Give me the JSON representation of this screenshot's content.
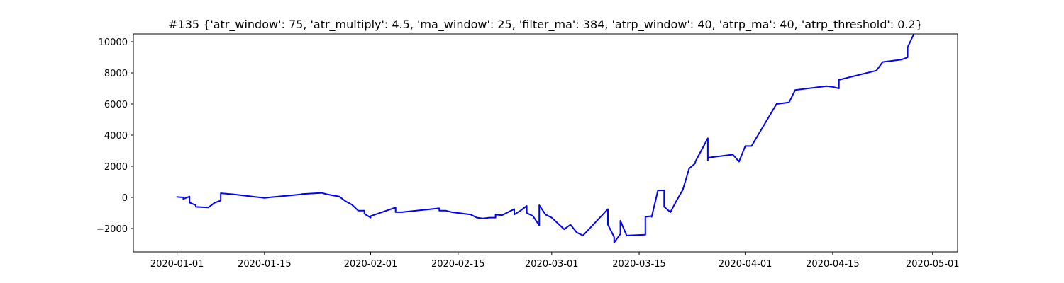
{
  "chart_data": {
    "type": "line",
    "title": "#135 {'atr_window': 75, 'atr_multiply': 4.5, 'ma_window': 25, 'filter_ma': 384, 'atrp_window': 40, 'atrp_ma': 40, 'atrp_threshold': 0.2}",
    "xlabel": "",
    "ylabel": "",
    "xlim": [
      "2019-12-25",
      "2020-05-05"
    ],
    "ylim": [
      -3500,
      10500
    ],
    "grid": false,
    "line_color": "#0000ff",
    "x_ticks": [
      "2020-01-01",
      "2020-01-15",
      "2020-02-01",
      "2020-02-15",
      "2020-03-01",
      "2020-03-15",
      "2020-04-01",
      "2020-04-15",
      "2020-05-01"
    ],
    "y_ticks": [
      -2000,
      0,
      2000,
      4000,
      6000,
      8000,
      10000
    ],
    "y_tick_labels": [
      "−2000",
      "0",
      "2000",
      "4000",
      "6000",
      "8000",
      "10000"
    ],
    "series": [
      {
        "x": [
          "2020-01-01",
          "2020-01-01",
          "2020-01-01",
          "2020-01-02",
          "2020-01-02",
          "2020-01-02",
          "2020-01-02",
          "2020-01-03",
          "2020-01-03",
          "2020-01-03",
          "2020-01-03",
          "2020-01-04",
          "2020-01-04",
          "2020-01-06",
          "2020-01-07",
          "2020-01-08",
          "2020-01-08",
          "2020-01-10",
          "2020-01-15",
          "2020-01-16",
          "2020-01-21",
          "2020-01-21",
          "2020-01-22",
          "2020-01-24",
          "2020-01-24",
          "2020-01-25",
          "2020-01-27",
          "2020-01-28",
          "2020-01-29",
          "2020-01-30",
          "2020-01-31",
          "2020-01-31",
          "2020-02-01",
          "2020-02-01",
          "2020-02-05",
          "2020-02-05",
          "2020-02-06",
          "2020-02-12",
          "2020-02-12",
          "2020-02-13",
          "2020-02-14",
          "2020-02-15",
          "2020-02-17",
          "2020-02-18",
          "2020-02-19",
          "2020-02-20",
          "2020-02-21",
          "2020-02-21",
          "2020-02-22",
          "2020-02-24",
          "2020-02-24",
          "2020-02-25",
          "2020-02-26",
          "2020-02-26",
          "2020-02-27",
          "2020-02-28",
          "2020-02-28",
          "2020-02-29",
          "2020-03-01",
          "2020-03-03",
          "2020-03-04",
          "2020-03-05",
          "2020-03-06",
          "2020-03-10",
          "2020-03-10",
          "2020-03-11",
          "2020-03-11",
          "2020-03-12",
          "2020-03-12",
          "2020-03-13",
          "2020-03-16",
          "2020-03-16",
          "2020-03-17",
          "2020-03-17",
          "2020-03-18",
          "2020-03-19",
          "2020-03-19",
          "2020-03-20",
          "2020-03-21",
          "2020-03-22",
          "2020-03-23",
          "2020-03-24",
          "2020-03-24",
          "2020-03-26",
          "2020-03-26",
          "2020-03-26",
          "2020-03-30",
          "2020-03-31",
          "2020-04-01",
          "2020-04-02",
          "2020-04-06",
          "2020-04-07",
          "2020-04-08",
          "2020-04-09",
          "2020-04-14",
          "2020-04-15",
          "2020-04-16",
          "2020-04-16",
          "2020-04-22",
          "2020-04-23",
          "2020-04-26",
          "2020-04-27",
          "2020-04-27",
          "2020-04-28"
        ],
        "y": [
          0,
          0,
          30,
          0,
          0,
          0,
          -100,
          60,
          -150,
          30,
          -330,
          -500,
          -610,
          -650,
          -350,
          -200,
          270,
          200,
          -30,
          10,
          200,
          220,
          240,
          280,
          310,
          200,
          50,
          -250,
          -470,
          -850,
          -850,
          -1050,
          -1300,
          -1200,
          -650,
          -950,
          -950,
          -700,
          -850,
          -850,
          -950,
          -1000,
          -1100,
          -1300,
          -1350,
          -1300,
          -1300,
          -1100,
          -1150,
          -750,
          -1100,
          -850,
          -550,
          -1000,
          -1200,
          -1800,
          -500,
          -1100,
          -1300,
          -2050,
          -1750,
          -2250,
          -2450,
          -750,
          -1750,
          -2550,
          -2900,
          -2350,
          -1500,
          -2450,
          -2400,
          -1250,
          -1200,
          -1250,
          450,
          450,
          -600,
          -950,
          -200,
          500,
          1850,
          2200,
          2300,
          3800,
          2400,
          2550,
          2750,
          2300,
          3300,
          3300,
          6000,
          6050,
          6100,
          6900,
          7150,
          7100,
          7000,
          7550,
          8150,
          8700,
          8850,
          9000,
          9650,
          10500
        ]
      }
    ]
  }
}
